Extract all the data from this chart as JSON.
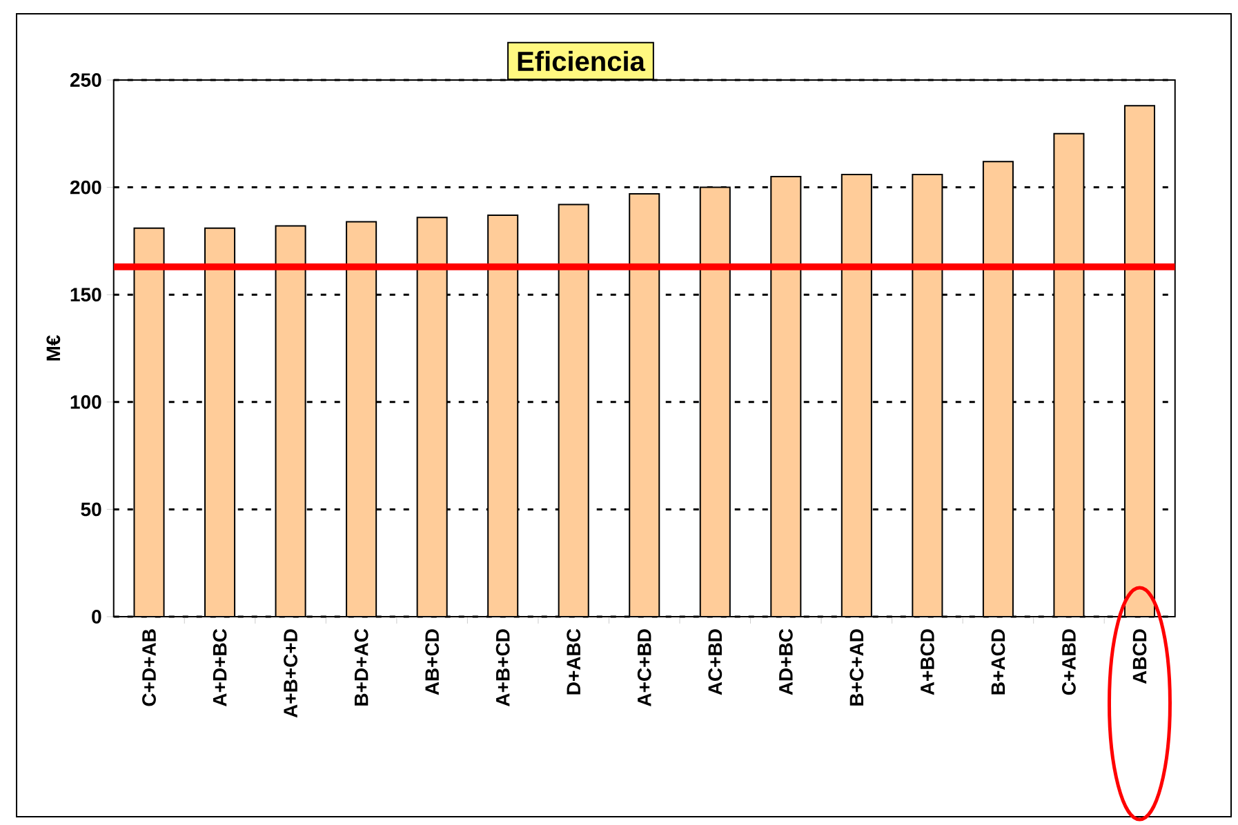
{
  "chart_data": {
    "type": "bar",
    "title": "Eficiencia",
    "ylabel": "M€",
    "categories": [
      "C+D+AB",
      "A+D+BC",
      "A+B+C+D",
      "B+D+AC",
      "AB+CD",
      "A+B+CD",
      "D+ABC",
      "A+C+BD",
      "AC+BD",
      "AD+BC",
      "B+C+AD",
      "A+BCD",
      "B+ACD",
      "C+ABD",
      "ABCD"
    ],
    "values": [
      181,
      181,
      182,
      184,
      186,
      187,
      192,
      197,
      200,
      205,
      206,
      206,
      212,
      225,
      238
    ],
    "color": "#ffcc99",
    "ylim": [
      0,
      250
    ],
    "yticks": [
      0,
      50,
      100,
      150,
      200,
      250
    ],
    "grid": "y",
    "ref_lines": [
      {
        "axis": "y",
        "value": 163,
        "color": "#ff0000"
      }
    ]
  }
}
